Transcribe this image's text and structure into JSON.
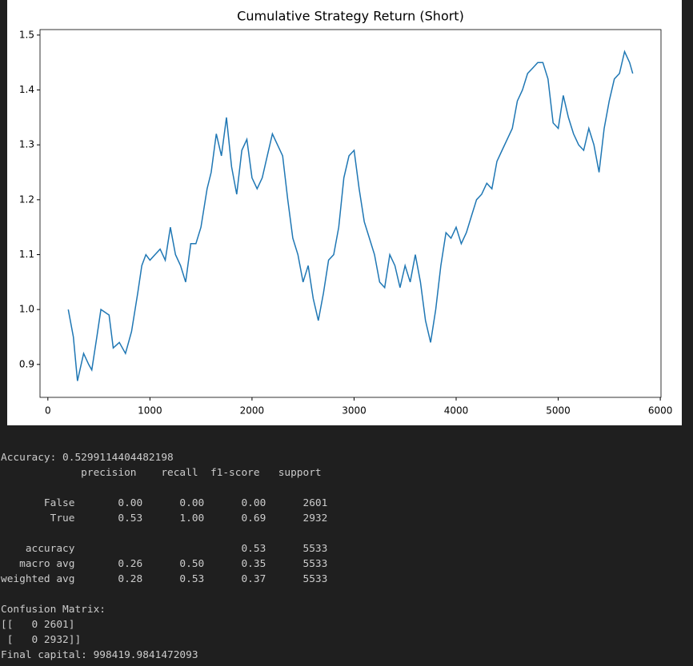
{
  "chart_data": {
    "type": "line",
    "title": "Cumulative Strategy Return (Short)",
    "color": "#1f77b4",
    "x": [
      200,
      250,
      290,
      350,
      400,
      430,
      480,
      520,
      600,
      640,
      700,
      760,
      820,
      880,
      920,
      960,
      1000,
      1050,
      1100,
      1150,
      1200,
      1250,
      1300,
      1350,
      1400,
      1450,
      1500,
      1560,
      1600,
      1650,
      1700,
      1750,
      1800,
      1850,
      1900,
      1950,
      2000,
      2050,
      2100,
      2150,
      2200,
      2250,
      2300,
      2350,
      2400,
      2450,
      2500,
      2550,
      2600,
      2650,
      2700,
      2750,
      2800,
      2850,
      2900,
      2950,
      3000,
      3050,
      3100,
      3150,
      3200,
      3250,
      3300,
      3350,
      3400,
      3450,
      3500,
      3550,
      3600,
      3650,
      3700,
      3750,
      3800,
      3850,
      3900,
      3950,
      4000,
      4050,
      4100,
      4150,
      4200,
      4250,
      4300,
      4350,
      4400,
      4450,
      4500,
      4550,
      4600,
      4650,
      4700,
      4750,
      4800,
      4850,
      4900,
      4950,
      5000,
      5050,
      5100,
      5150,
      5200,
      5250,
      5300,
      5350,
      5400,
      5450,
      5500,
      5550,
      5600,
      5650,
      5700,
      5730
    ],
    "values": [
      1.0,
      0.95,
      0.87,
      0.92,
      0.9,
      0.89,
      0.95,
      1.0,
      0.99,
      0.93,
      0.94,
      0.92,
      0.96,
      1.03,
      1.08,
      1.1,
      1.09,
      1.1,
      1.11,
      1.09,
      1.15,
      1.1,
      1.08,
      1.05,
      1.12,
      1.12,
      1.15,
      1.22,
      1.25,
      1.32,
      1.28,
      1.35,
      1.26,
      1.21,
      1.29,
      1.31,
      1.24,
      1.22,
      1.24,
      1.28,
      1.32,
      1.3,
      1.28,
      1.2,
      1.13,
      1.1,
      1.05,
      1.08,
      1.02,
      0.98,
      1.03,
      1.09,
      1.1,
      1.15,
      1.24,
      1.28,
      1.29,
      1.22,
      1.16,
      1.13,
      1.1,
      1.05,
      1.04,
      1.1,
      1.08,
      1.04,
      1.08,
      1.05,
      1.1,
      1.05,
      0.98,
      0.94,
      1.0,
      1.08,
      1.14,
      1.13,
      1.15,
      1.12,
      1.14,
      1.17,
      1.2,
      1.21,
      1.23,
      1.22,
      1.27,
      1.29,
      1.31,
      1.33,
      1.38,
      1.4,
      1.43,
      1.44,
      1.45,
      1.45,
      1.42,
      1.34,
      1.33,
      1.39,
      1.35,
      1.32,
      1.3,
      1.29,
      1.33,
      1.3,
      1.25,
      1.33,
      1.38,
      1.42,
      1.43,
      1.47,
      1.45,
      1.43
    ],
    "xlim": [
      -77,
      6007
    ],
    "xticks": [
      0,
      1000,
      2000,
      3000,
      4000,
      5000,
      6000
    ],
    "ylim": [
      0.84,
      1.51
    ],
    "yticks": [
      {
        "value": 0.9,
        "label": "0.9"
      },
      {
        "value": 1,
        "label": "1.0"
      },
      1.1,
      1.2,
      1.3,
      1.4,
      1.5
    ]
  },
  "output": {
    "lines": [
      "Accuracy: 0.5299114404482198",
      "             precision    recall  f1-score   support",
      "       False       0.00      0.00      0.00      2601",
      "        True       0.53      1.00      0.69      2932",
      "    accuracy                           0.53      5533",
      "   macro avg       0.26      0.50      0.35      5533",
      "weighted avg       0.28      0.53      0.37      5533",
      "Confusion Matrix:",
      "[[   0 2601]",
      " [   0 2932]]",
      "Final capital: 998419.9841472093"
    ]
  }
}
